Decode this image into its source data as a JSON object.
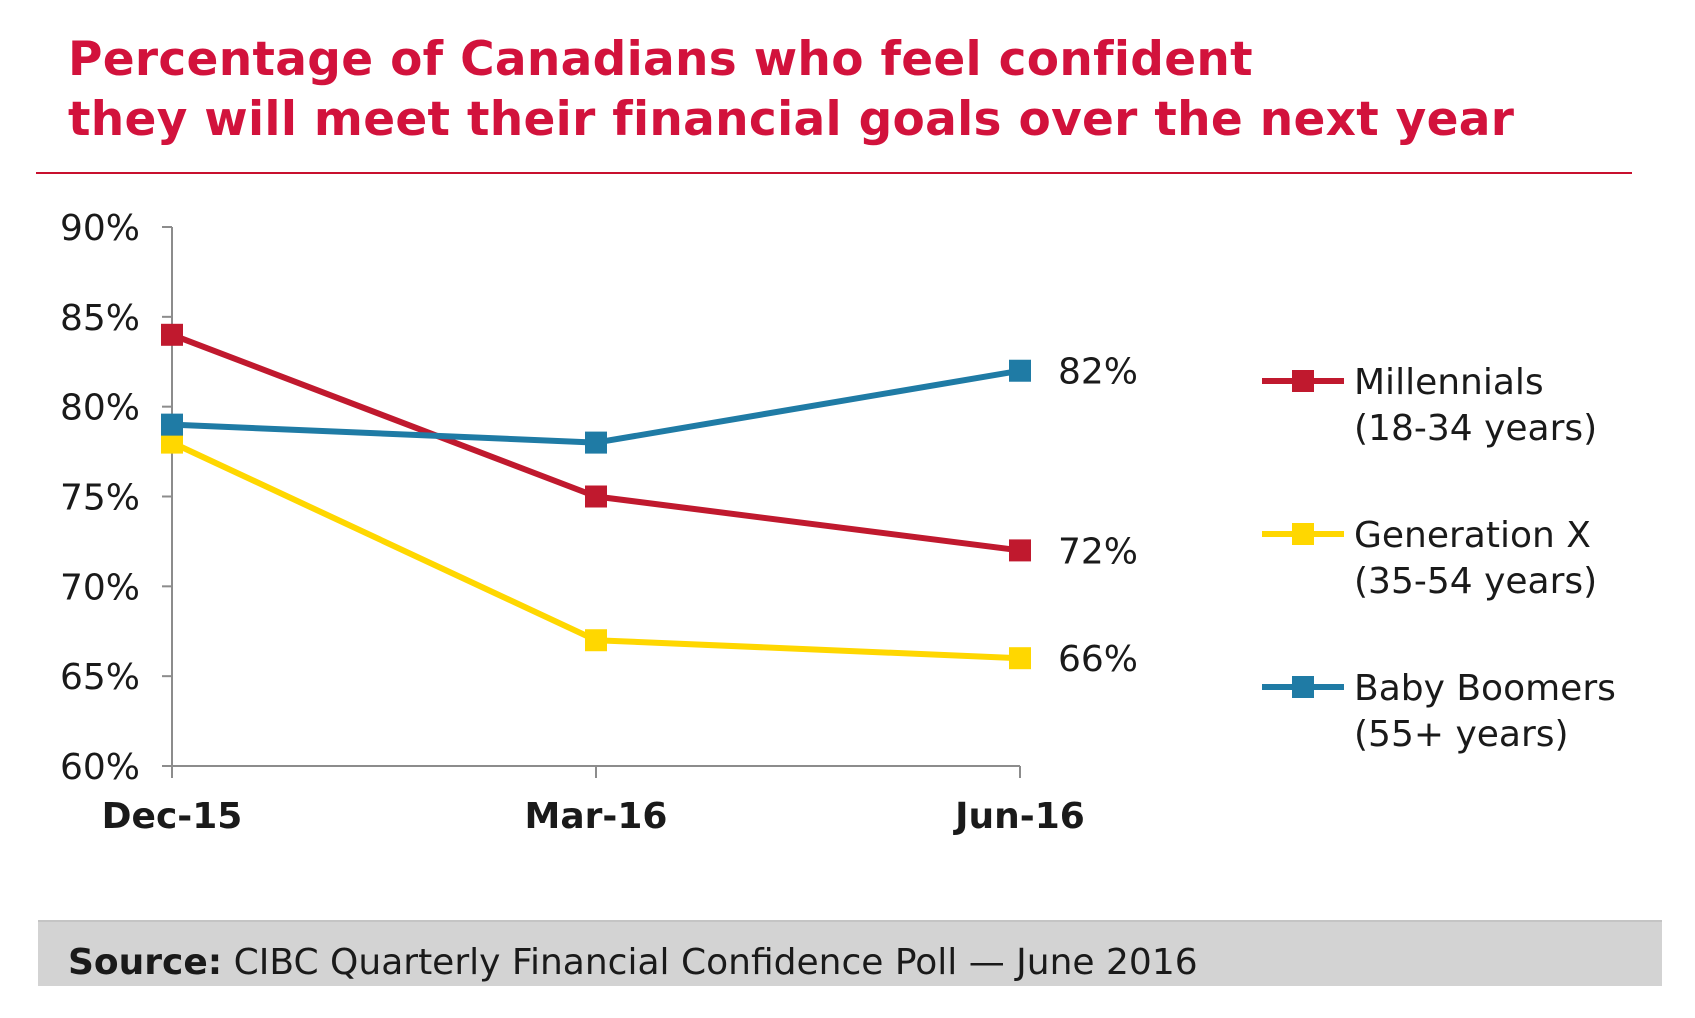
{
  "title": {
    "line1": "Percentage of Canadians who feel confident",
    "line2": "they will meet their financial goals over the next year"
  },
  "chart_data": {
    "type": "line",
    "title": "Percentage of Canadians who feel confident they will meet their financial goals over the next year",
    "categories": [
      "Dec-15",
      "Mar-16",
      "Jun-16"
    ],
    "ylim": [
      60,
      90
    ],
    "yticks": [
      60,
      65,
      70,
      75,
      80,
      85,
      90
    ],
    "ytick_labels": [
      "60%",
      "65%",
      "70%",
      "75%",
      "80%",
      "85%",
      "90%"
    ],
    "xlabel": "",
    "ylabel": "",
    "grid": false,
    "legend_position": "right",
    "series": [
      {
        "key": "millennials",
        "name": "Millennials",
        "sublabel": "(18-34 years)",
        "color": "#c0192e",
        "values": [
          84,
          75,
          72
        ],
        "end_label": "72%"
      },
      {
        "key": "genx",
        "name": "Generation X",
        "sublabel": "(35-54 years)",
        "color": "#ffd700",
        "values": [
          78,
          67,
          66
        ],
        "end_label": "66%"
      },
      {
        "key": "boomers",
        "name": "Baby Boomers",
        "sublabel": "(55+ years)",
        "color": "#1f7ba5",
        "values": [
          79,
          78,
          82
        ],
        "end_label": "82%"
      }
    ]
  },
  "footer": {
    "source_label": "Source:",
    "source_text": "CIBC Quarterly Financial Confidence Poll — June 2016"
  }
}
